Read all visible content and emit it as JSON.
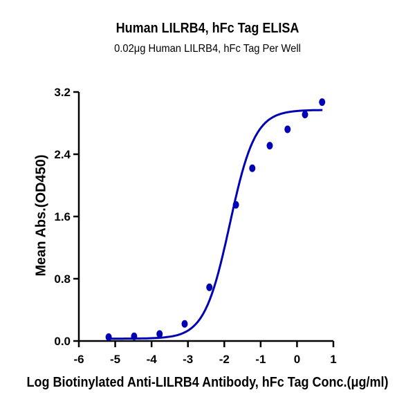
{
  "chart_data": {
    "type": "scatter",
    "title": "Human LILRB4, hFc Tag ELISA",
    "subtitle": "0.02μg Human LILRB4, hFc Tag Per Well",
    "xlabel": "Log Biotinylated Anti-LILRB4 Antibody, hFc Tag Conc.(μg/ml)",
    "ylabel": "Mean Abs.(OD450)",
    "xlim": [
      -6,
      1
    ],
    "ylim": [
      0,
      3.2
    ],
    "xticks": [
      "-6",
      "-5",
      "-4",
      "-3",
      "-2",
      "-1",
      "0",
      "1"
    ],
    "yticks": [
      "0.0",
      "0.8",
      "1.6",
      "2.4",
      "3.2"
    ],
    "grid": false,
    "legend": null,
    "series": [
      {
        "name": "Mean Abs.(OD450)",
        "color": "#0000b4",
        "marker": "circle",
        "fit": "4PL sigmoidal curve",
        "x": [
          -5.18,
          -4.48,
          -3.78,
          -3.09,
          -2.41,
          -1.68,
          -1.23,
          -0.75,
          -0.26,
          0.22,
          0.69
        ],
        "y": [
          0.05,
          0.06,
          0.09,
          0.22,
          0.69,
          1.75,
          2.22,
          2.51,
          2.72,
          2.91,
          3.07
        ]
      }
    ]
  }
}
